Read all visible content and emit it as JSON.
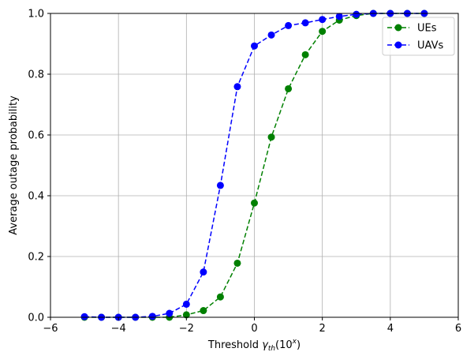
{
  "chart_data": {
    "type": "line",
    "xlabel_prefix": "Threshold ",
    "xlabel_symbol": "γ",
    "xlabel_sub": "th",
    "xlabel_paren_open": "(10",
    "xlabel_sup": "x",
    "xlabel_paren_close": ")",
    "ylabel": "Average outage probability",
    "xlim": [
      -6,
      6
    ],
    "ylim": [
      0,
      1
    ],
    "xticks": [
      -6,
      -4,
      -2,
      0,
      2,
      4,
      6
    ],
    "xtick_labels": [
      "−6",
      "−4",
      "−2",
      "0",
      "2",
      "4",
      "6"
    ],
    "yticks": [
      0,
      0.2,
      0.4,
      0.6,
      0.8,
      1.0
    ],
    "ytick_labels": [
      "0.0",
      "0.2",
      "0.4",
      "0.6",
      "0.8",
      "1.0"
    ],
    "grid": true,
    "legend_position": "top-right",
    "x": [
      -5,
      -4.5,
      -4,
      -3.5,
      -3,
      -2.5,
      -2,
      -1.5,
      -1,
      -0.5,
      0,
      0.5,
      1,
      1.5,
      2,
      2.5,
      3,
      3.5,
      4,
      4.5,
      5
    ],
    "series": [
      {
        "name": "UEs",
        "color": "#008000",
        "values": [
          0,
          0,
          0,
          0,
          0,
          0,
          0.008,
          0.022,
          0.067,
          0.178,
          0.376,
          0.593,
          0.752,
          0.864,
          0.941,
          0.978,
          0.993,
          1.0,
          1.0,
          1.0,
          1.0
        ]
      },
      {
        "name": "UAVs",
        "color": "#0000ff",
        "values": [
          0.002,
          0,
          0,
          0,
          0.003,
          0.013,
          0.043,
          0.149,
          0.434,
          0.759,
          0.893,
          0.929,
          0.96,
          0.969,
          0.98,
          0.99,
          0.997,
          1.0,
          1.0,
          1.0,
          1.0
        ]
      }
    ]
  }
}
